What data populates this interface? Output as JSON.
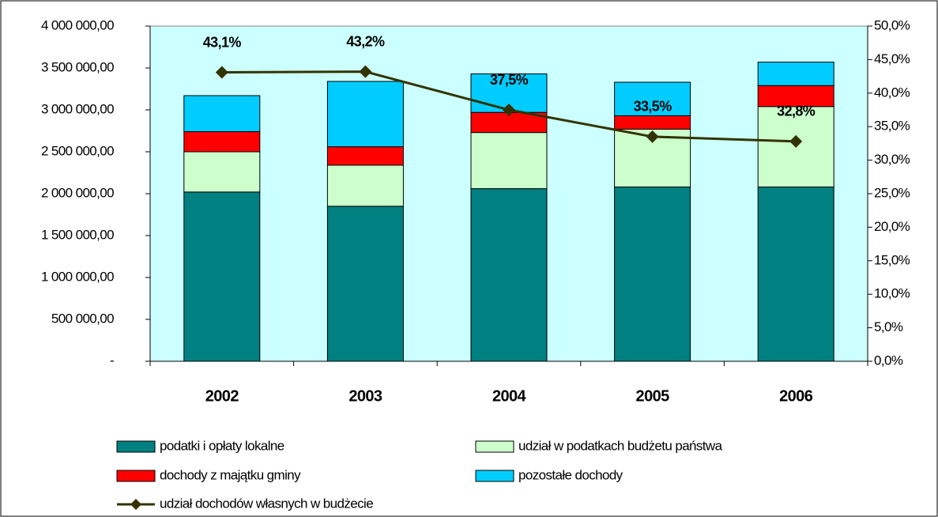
{
  "chart_data": {
    "type": "bar",
    "categories": [
      "2002",
      "2003",
      "2004",
      "2005",
      "2006"
    ],
    "series": [
      {
        "name": "podatki i opłaty lokalne",
        "color": "#008080",
        "values": [
          2020000,
          1850000,
          2060000,
          2080000,
          2080000
        ]
      },
      {
        "name": "udział w podatkach budżetu państwa",
        "color": "#ccffcc",
        "values": [
          480000,
          490000,
          670000,
          690000,
          960000
        ]
      },
      {
        "name": "dochody z majątku gminy",
        "color": "#ff0000",
        "values": [
          240000,
          220000,
          240000,
          160000,
          250000
        ]
      },
      {
        "name": "pozostałe dochody",
        "color": "#00ccff",
        "values": [
          430000,
          780000,
          460000,
          400000,
          280000
        ]
      },
      {
        "name": "udział dochodów własnych w budżecie",
        "color": "#333300",
        "type": "line",
        "axis": "y2",
        "values": [
          43.1,
          43.2,
          37.5,
          33.5,
          32.8
        ],
        "value_labels": [
          "43,1%",
          "43,2%",
          "37,5%",
          "33,5%",
          "32,8%"
        ]
      }
    ],
    "stacked": true,
    "plot_background": "#ccffff",
    "ylim": [
      0,
      4000000
    ],
    "yticks": [
      {
        "value": 0,
        "label": "-"
      },
      {
        "value": 500000,
        "label": "500 000,00"
      },
      {
        "value": 1000000,
        "label": "1 000 000,00"
      },
      {
        "value": 1500000,
        "label": "1 500 000,00"
      },
      {
        "value": 2000000,
        "label": "2 000 000,00"
      },
      {
        "value": 2500000,
        "label": "2 500 000,00"
      },
      {
        "value": 3000000,
        "label": "3 000 000,00"
      },
      {
        "value": 3500000,
        "label": "3 500 000,00"
      },
      {
        "value": 4000000,
        "label": "4 000 000,00"
      }
    ],
    "y2lim": [
      0,
      50
    ],
    "y2ticks": [
      {
        "value": 0,
        "label": "0,0%"
      },
      {
        "value": 5,
        "label": "5,0%"
      },
      {
        "value": 10,
        "label": "10,0%"
      },
      {
        "value": 15,
        "label": "15,0%"
      },
      {
        "value": 20,
        "label": "20,0%"
      },
      {
        "value": 25,
        "label": "25,0%"
      },
      {
        "value": 30,
        "label": "30,0%"
      },
      {
        "value": 35,
        "label": "35,0%"
      },
      {
        "value": 40,
        "label": "40,0%"
      },
      {
        "value": 45,
        "label": "45,0%"
      },
      {
        "value": 50,
        "label": "50,0%"
      }
    ],
    "legend": "bottom"
  }
}
